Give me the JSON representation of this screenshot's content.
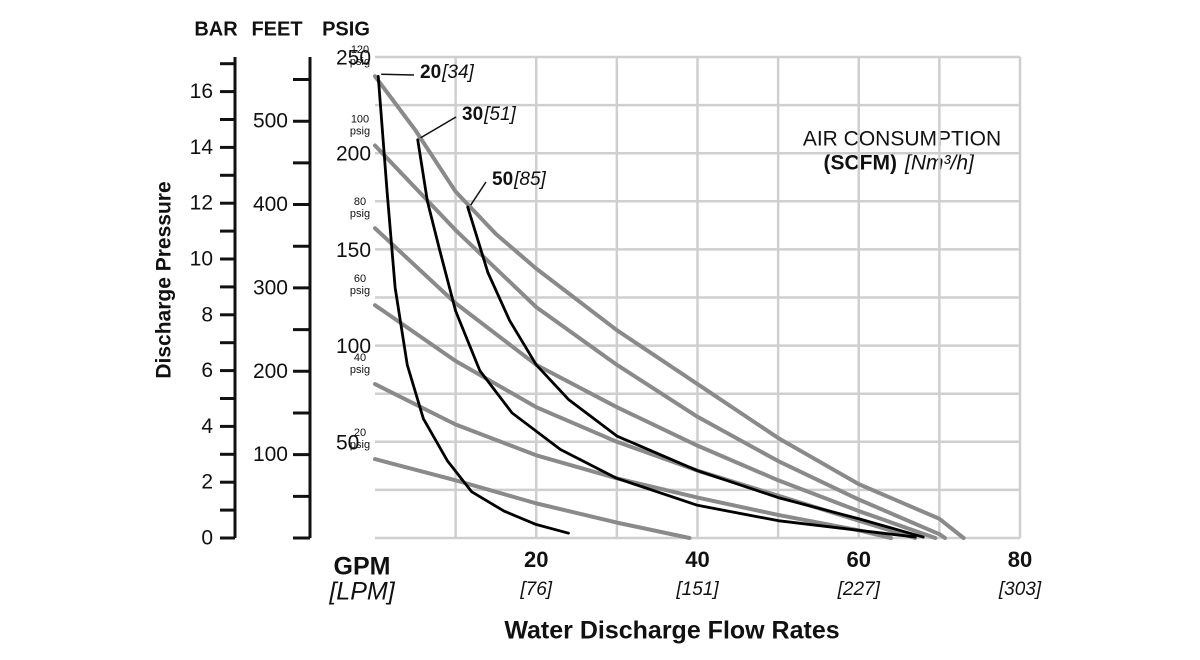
{
  "chart_data": {
    "type": "line",
    "x_label": "Water Discharge Flow Rates",
    "y_label": "Discharge Pressure",
    "x_unit": "GPM",
    "x_unit2": "[LPM]",
    "xlim": [
      0,
      80
    ],
    "xticks": [
      20,
      40,
      60,
      80
    ],
    "xticks2": [
      {
        "value": 20,
        "label": "[76]"
      },
      {
        "value": 40,
        "label": "[151]"
      },
      {
        "value": 60,
        "label": "[227]"
      },
      {
        "value": 80,
        "label": "[303]"
      }
    ],
    "xgrid": [
      10,
      20,
      30,
      40,
      50,
      60,
      70,
      80
    ],
    "y_unit": "PSIG",
    "ylim": [
      0,
      250
    ],
    "yticks": [
      50,
      100,
      150,
      200,
      250
    ],
    "ygrid": [
      0,
      25,
      50,
      75,
      100,
      125,
      150,
      175,
      200,
      225,
      250
    ],
    "grid_color": "#cfcfcf",
    "bar_axis": {
      "unit": "BAR",
      "lim": [
        0,
        17.24
      ],
      "ticks": [
        0,
        2,
        4,
        6,
        8,
        10,
        12,
        14,
        16
      ],
      "minor_ticks": [
        1,
        3,
        5,
        7,
        9,
        11,
        13,
        15,
        17
      ]
    },
    "feet_axis": {
      "unit": "FEET",
      "lim": [
        0,
        577
      ],
      "ticks": [
        100,
        200,
        300,
        400,
        500
      ],
      "minor_ticks": [
        0,
        50,
        150,
        250,
        350,
        450,
        550
      ]
    },
    "annotation": {
      "title": "AIR CONSUMPTION",
      "unit": "(SCFM)",
      "unit2": "[Nm³/h]"
    },
    "series": [
      {
        "name": "120",
        "unit": "psig",
        "color": "#8a8a8a",
        "x": [
          0,
          5,
          10,
          15,
          20,
          30,
          40,
          50,
          60,
          70,
          73
        ],
        "values": [
          240,
          212,
          180,
          158,
          140,
          108,
          80,
          52,
          28,
          10,
          0
        ]
      },
      {
        "name": "100",
        "unit": "psig",
        "color": "#8a8a8a",
        "x": [
          0,
          10,
          20,
          30,
          40,
          50,
          60,
          70,
          70.7
        ],
        "values": [
          204,
          160,
          120,
          90,
          63,
          40,
          20,
          2,
          0
        ]
      },
      {
        "name": "80",
        "unit": "psig",
        "color": "#8a8a8a",
        "x": [
          0,
          10,
          20,
          30,
          40,
          50,
          60,
          69.5
        ],
        "values": [
          161,
          122,
          90,
          68,
          48,
          30,
          14,
          0
        ]
      },
      {
        "name": "60",
        "unit": "psig",
        "color": "#8a8a8a",
        "x": [
          0,
          10,
          20,
          30,
          40,
          50,
          60,
          67
        ],
        "values": [
          121,
          92,
          68,
          50,
          35,
          22,
          9,
          0
        ]
      },
      {
        "name": "40",
        "unit": "psig",
        "color": "#8a8a8a",
        "x": [
          0,
          10,
          20,
          30,
          40,
          50,
          60,
          64
        ],
        "values": [
          80,
          59,
          43,
          31,
          21,
          12,
          4,
          0
        ]
      },
      {
        "name": "20",
        "unit": "psig",
        "color": "#8a8a8a",
        "x": [
          0,
          10,
          20,
          30,
          39
        ],
        "values": [
          41,
          30,
          18,
          8,
          0
        ]
      }
    ],
    "consumption_series": [
      {
        "name": "20",
        "sublabel": "[34]",
        "color": "#000000",
        "x": [
          0.4,
          1.5,
          2.5,
          4,
          6,
          9,
          12,
          16,
          20,
          24
        ],
        "values": [
          240,
          180,
          130,
          90,
          62,
          40,
          24,
          14,
          7,
          2.5
        ]
      },
      {
        "name": "30",
        "sublabel": "[51]",
        "color": "#000000",
        "x": [
          5.3,
          6.5,
          8,
          10,
          13,
          17,
          23,
          30,
          40,
          50,
          60,
          67
        ],
        "values": [
          207,
          175,
          150,
          118,
          87,
          65,
          46,
          31,
          17,
          9,
          4,
          0.5
        ]
      },
      {
        "name": "50",
        "sublabel": "[85]",
        "color": "#000000",
        "x": [
          11.5,
          14,
          16.7,
          20,
          24,
          30,
          40,
          50,
          60,
          68
        ],
        "values": [
          172,
          138,
          113,
          90,
          72,
          53,
          35,
          21,
          10,
          0.5
        ]
      }
    ]
  }
}
